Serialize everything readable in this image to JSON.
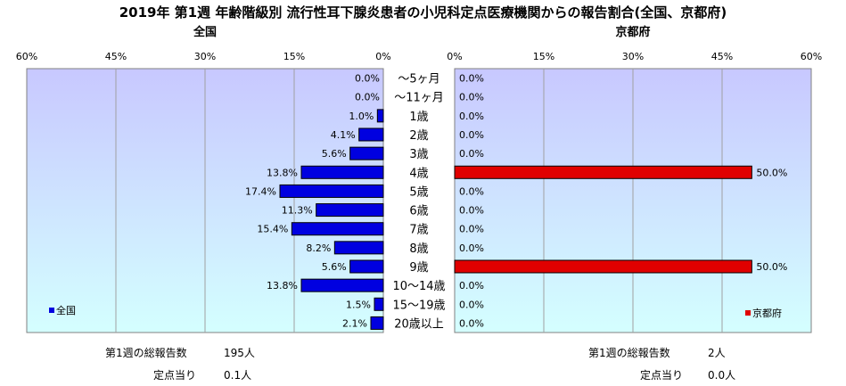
{
  "title": "2019年 第1週 年齢階級別 流行性耳下腺炎患者の小児科定点医療機関からの報告割合(全国、京都府)",
  "chart_data": {
    "type": "bar",
    "orientation": "horizontal",
    "categories": [
      "～5ヶ月",
      "～11ヶ月",
      "1歳",
      "2歳",
      "3歳",
      "4歳",
      "5歳",
      "6歳",
      "7歳",
      "8歳",
      "9歳",
      "10～14歳",
      "15～19歳",
      "20歳以上"
    ],
    "tick_labels": [
      "60%",
      "45%",
      "30%",
      "15%",
      "0%"
    ],
    "ticks": [
      0,
      15,
      30,
      45,
      60
    ],
    "xlim": [
      0,
      60
    ],
    "series": [
      {
        "name": "全国",
        "subtitle": "全国",
        "side": "left",
        "color": "#0000e0",
        "values": [
          0.0,
          0.0,
          1.0,
          4.1,
          5.6,
          13.8,
          17.4,
          11.3,
          15.4,
          8.2,
          5.6,
          13.8,
          1.5,
          2.1
        ],
        "labels": [
          "0.0%",
          "0.0%",
          "1.0%",
          "4.1%",
          "5.6%",
          "13.8%",
          "17.4%",
          "11.3%",
          "15.4%",
          "8.2%",
          "5.6%",
          "13.8%",
          "1.5%",
          "2.1%"
        ]
      },
      {
        "name": "京都府",
        "subtitle": "京都府",
        "side": "right",
        "color": "#e00000",
        "values": [
          0.0,
          0.0,
          0.0,
          0.0,
          0.0,
          50.0,
          0.0,
          0.0,
          0.0,
          0.0,
          50.0,
          0.0,
          0.0,
          0.0
        ],
        "labels": [
          "0.0%",
          "0.0%",
          "0.0%",
          "0.0%",
          "0.0%",
          "50.0%",
          "0.0%",
          "0.0%",
          "0.0%",
          "0.0%",
          "50.0%",
          "0.0%",
          "0.0%",
          "0.0%"
        ]
      }
    ],
    "tick_labels_right": [
      "0%",
      "15%",
      "30%",
      "45%",
      "60%"
    ],
    "legend_left": "全国",
    "legend_right": "京都府",
    "legend_placement": "bottom-left / bottom-right",
    "grid": true
  },
  "footer": {
    "left_total_label": "第1週の総報告数",
    "left_total_value": "195人",
    "left_per_label": "定点当り",
    "left_per_value": "0.1人",
    "right_total_label": "第1週の総報告数",
    "right_total_value": "2人",
    "right_per_label": "定点当り",
    "right_per_value": "0.0人"
  },
  "colors": {
    "plot_top": "#c8c8ff",
    "plot_bottom": "#d4ffff",
    "left_bar": "#0000e0",
    "right_bar": "#e00000"
  }
}
